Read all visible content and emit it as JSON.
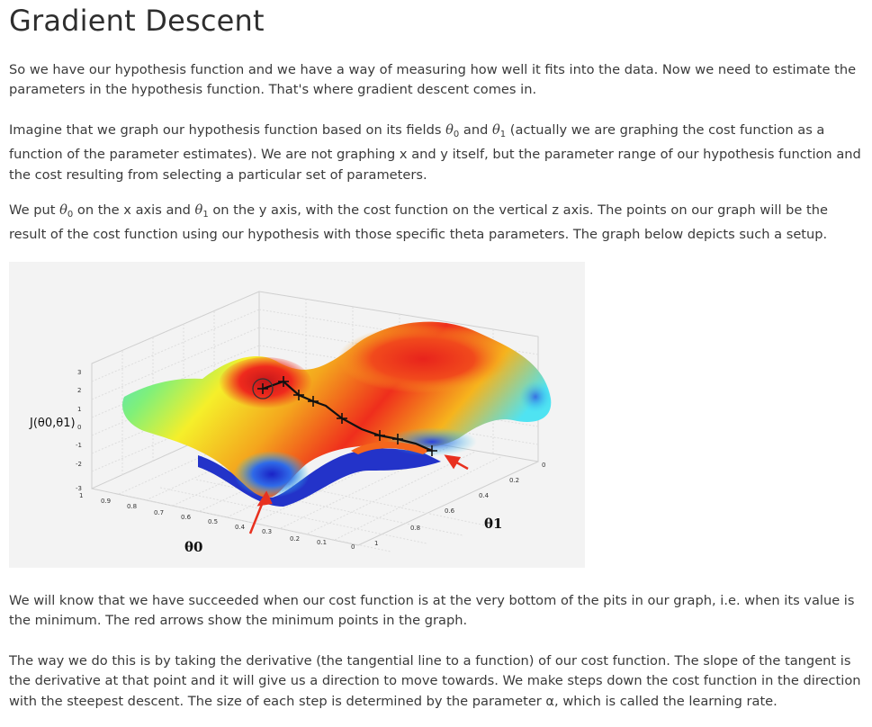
{
  "title": "Gradient Descent",
  "p1": "So we have our hypothesis function and we have a way of measuring how well it fits into the data. Now we need to estimate the parameters in the hypothesis function. That's where gradient descent comes in.",
  "p2": {
    "a": "Imagine that we graph our hypothesis function based on its fields ",
    "theta0": "θ",
    "theta0_sub": "0",
    "b": " and ",
    "theta1": "θ",
    "theta1_sub": "1",
    "c": " (actually we are graphing the cost function as a function of the parameter estimates). We are not graphing x and y itself, but the parameter range of our hypothesis function and the cost resulting from selecting a particular set of parameters."
  },
  "p3": {
    "a": "We put ",
    "theta0": "θ",
    "theta0_sub": "0",
    "b": " on the x axis and ",
    "theta1": "θ",
    "theta1_sub": "1",
    "c": " on the y axis, with the cost function on the vertical z axis. The points on our graph will be the result of the cost function using our hypothesis with those specific theta parameters. The graph below depicts such a setup."
  },
  "figure": {
    "zlabel": "J(θ0,θ1)",
    "xlabel": "θ0",
    "ylabel": "θ1",
    "z_ticks": [
      "3",
      "2",
      "1",
      "0",
      "-1",
      "-2",
      "-3"
    ],
    "x_ticks": [
      "1",
      "0.9",
      "0.8",
      "0.7",
      "0.6",
      "0.5",
      "0.4",
      "0.3",
      "0.2",
      "0.1",
      "0"
    ],
    "y_ticks": [
      "1",
      "0.8",
      "0.6",
      "0.4",
      "0.2",
      "0"
    ],
    "colors": {
      "high": "#e8231c",
      "mid": "#f2f21a",
      "low": "#1f2fd6",
      "path": "#111111",
      "arrow": "#e8311f"
    }
  },
  "p4": "We will know that we have succeeded when our cost function is at the very bottom of the pits in our graph, i.e. when its value is the minimum. The red arrows show the minimum points in the graph.",
  "p5": "The way we do this is by taking the derivative (the tangential line to a function) of our cost function. The slope of the tangent is the derivative at that point and it will give us a direction to move towards. We make steps down the cost function in the direction with the steepest descent. The size of each step is determined by the parameter α, which is called the learning rate."
}
